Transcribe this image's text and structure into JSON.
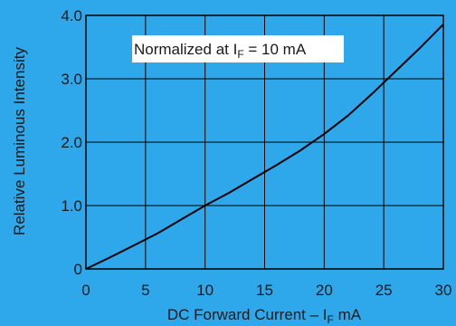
{
  "chart_data": {
    "type": "line",
    "title": "",
    "xlabel_main": "DC Forward Current – I",
    "xlabel_sub": "F",
    "xlabel_tail": " mA",
    "ylabel": "Relative Luminous Intensity",
    "annotation_main": "Normalized at I",
    "annotation_sub": "F",
    "annotation_tail": " = 10 mA",
    "xlim": [
      0,
      30
    ],
    "ylim": [
      0,
      4
    ],
    "grid": true,
    "x_ticks": [
      0,
      5,
      10,
      15,
      20,
      25,
      30
    ],
    "x_tick_labels": [
      "0",
      "5",
      "10",
      "15",
      "20",
      "25",
      "30"
    ],
    "y_ticks": [
      0,
      1,
      2,
      3,
      4
    ],
    "y_tick_labels": [
      "0",
      "1.0",
      "2.0",
      "3.0",
      "4.0"
    ],
    "series": [
      {
        "x": [
          0,
          2,
          4,
          6,
          8,
          10,
          12,
          14,
          16,
          18,
          20,
          22,
          24,
          26,
          28,
          30
        ],
        "y": [
          0,
          0.18,
          0.37,
          0.56,
          0.78,
          1.0,
          1.2,
          1.42,
          1.64,
          1.87,
          2.13,
          2.42,
          2.76,
          3.12,
          3.48,
          3.86
        ]
      }
    ],
    "colors": {
      "background": "#2ea8ea",
      "plot_fill": "#2ea8ea",
      "grid": "#000000",
      "line": "#000000",
      "annotation_box": "#ffffff"
    }
  }
}
